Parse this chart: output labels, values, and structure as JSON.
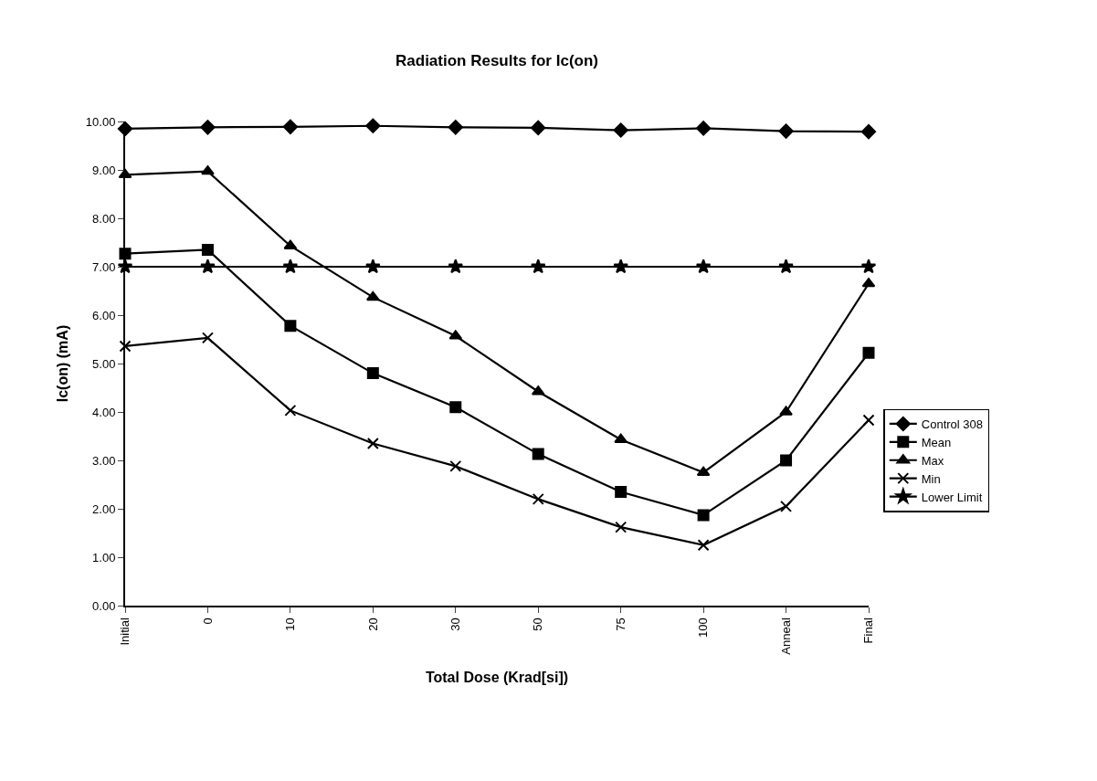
{
  "chart_data": {
    "type": "line",
    "title": "Radiation Results for Ic(on)",
    "xlabel": "Total Dose (Krad[si])",
    "ylabel": "Ic(on) (mA)",
    "categories": [
      "Initial",
      "0",
      "10",
      "20",
      "30",
      "50",
      "75",
      "100",
      "Anneal",
      "Final"
    ],
    "series": [
      {
        "name": "Control 308",
        "color": "#000000",
        "marker": "diamond",
        "values": [
          9.85,
          9.88,
          9.89,
          9.91,
          9.88,
          9.87,
          9.82,
          9.86,
          9.8,
          9.79
        ]
      },
      {
        "name": "Mean",
        "color": "#000000",
        "marker": "square",
        "values": [
          7.27,
          7.35,
          5.78,
          4.8,
          4.1,
          3.13,
          2.35,
          1.87,
          3.0,
          5.22
        ]
      },
      {
        "name": "Max",
        "color": "#000000",
        "marker": "triangle",
        "values": [
          8.9,
          8.97,
          7.43,
          6.37,
          5.57,
          4.42,
          3.43,
          2.75,
          4.0,
          6.65
        ]
      },
      {
        "name": "Min",
        "color": "#000000",
        "marker": "cross",
        "values": [
          5.36,
          5.53,
          4.03,
          3.35,
          2.88,
          2.2,
          1.62,
          1.25,
          2.05,
          3.83
        ]
      },
      {
        "name": "Lower Limit",
        "color": "#000000",
        "marker": "star",
        "values": [
          7.0,
          7.0,
          7.0,
          7.0,
          7.0,
          7.0,
          7.0,
          7.0,
          7.0,
          7.0
        ]
      }
    ],
    "ylim": [
      0,
      10
    ],
    "yticks": [
      {
        "value": 0,
        "label": "0.00"
      },
      {
        "value": 1,
        "label": "1.00"
      },
      {
        "value": 2,
        "label": "2.00"
      },
      {
        "value": 3,
        "label": "3.00"
      },
      {
        "value": 4,
        "label": "4.00"
      },
      {
        "value": 5,
        "label": "5.00"
      },
      {
        "value": 6,
        "label": "6.00"
      },
      {
        "value": 7,
        "label": "7.00"
      },
      {
        "value": 8,
        "label": "8.00"
      },
      {
        "value": 9,
        "label": "9.00"
      },
      {
        "value": 10,
        "label": "10.00"
      }
    ],
    "grid": false,
    "legend": "right",
    "line_style": "solid"
  }
}
